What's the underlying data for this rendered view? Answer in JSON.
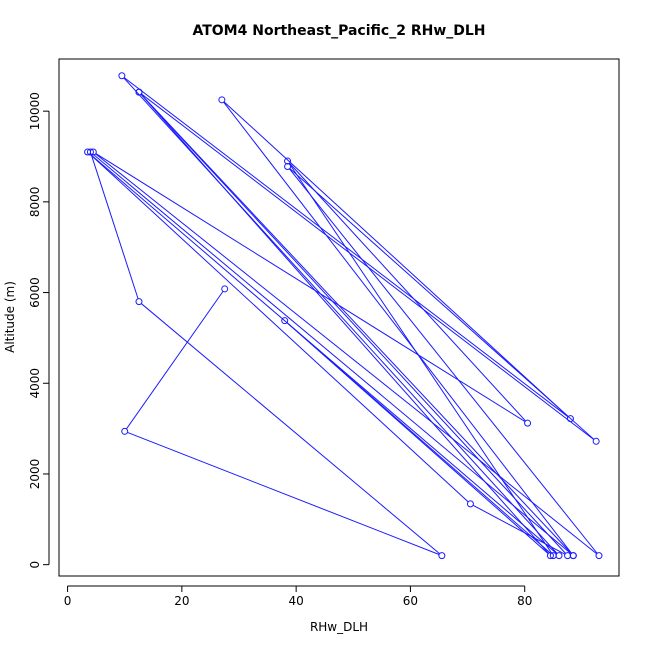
{
  "chart_data": {
    "type": "line",
    "title": "ATOM4 Northeast_Pacific_2 RHw_DLH",
    "xlabel": "RHw_DLH",
    "ylabel": "Altitude (m)",
    "xlim": [
      -1.5,
      96.5
    ],
    "ylim": [
      -250,
      11150
    ],
    "xticks": [
      0,
      20,
      40,
      60,
      80
    ],
    "yticks": [
      0,
      2000,
      4000,
      6000,
      8000,
      10000
    ],
    "grid": false,
    "markers": "open-circle",
    "line_color": "#1a1aff",
    "series": [
      {
        "x": [
          27.5,
          10,
          65.5,
          12.5,
          4,
          88.5,
          27,
          88,
          9.5,
          86,
          3.5,
          70.5,
          87.5,
          12.5,
          84.5,
          38,
          85,
          38.5,
          80.5,
          4.5,
          93,
          38.5,
          92.5,
          12.5,
          88.5
        ],
        "y": [
          6080,
          2940,
          200,
          5800,
          9100,
          200,
          10250,
          3220,
          10780,
          200,
          9100,
          1340,
          200,
          10420,
          200,
          5380,
          200,
          8900,
          3120,
          9100,
          200,
          8780,
          2720,
          10420,
          200
        ]
      }
    ]
  }
}
